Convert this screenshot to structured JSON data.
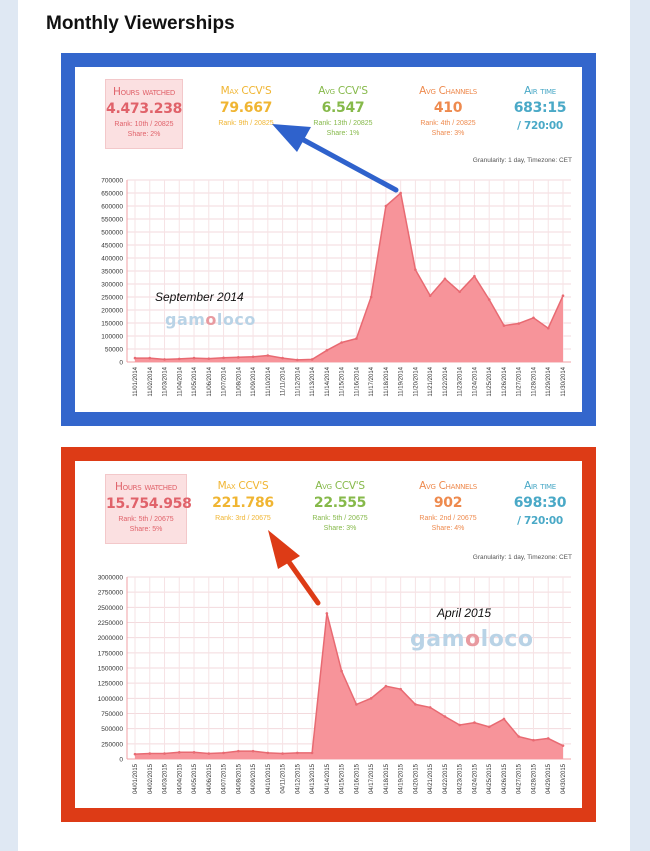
{
  "page_title": "Monthly Viewerships",
  "colors": {
    "frame1": "#3366cc",
    "frame2": "#dd3b16",
    "hours": "#e0626a",
    "max": "#f0b532",
    "avg": "#86b94a",
    "channels": "#ee8a4e",
    "air": "#4aa9c7",
    "area": "#f7949a",
    "line": "#e86a72"
  },
  "panels": [
    {
      "stats": {
        "hours": {
          "label": "Hours watched",
          "value": "4.473.238",
          "rank": "Rank: 10th / 20825",
          "share": "Share: 2%"
        },
        "max": {
          "label": "Max CCV'S",
          "value": "79.667",
          "rank": "Rank: 9th / 20825"
        },
        "avg": {
          "label": "Avg CCV'S",
          "value": "6.547",
          "rank": "Rank: 13th / 20825",
          "share": "Share: 1%"
        },
        "channels": {
          "label": "Avg Channels",
          "value": "410",
          "rank": "Rank: 4th / 20825",
          "share": "Share: 3%"
        },
        "air": {
          "label": "Air time",
          "value": "683:15",
          "total": "/ 720:00"
        }
      },
      "granularity": "Granularity: 1 day, Timezone: CET",
      "caption": "September 2014",
      "logo": {
        "pre": "gam",
        "o": "o",
        "post": "loco"
      }
    },
    {
      "stats": {
        "hours": {
          "label": "Hours watched",
          "value": "15.754.958",
          "rank": "Rank: 5th / 20675",
          "share": "Share: 5%"
        },
        "max": {
          "label": "Max CCV'S",
          "value": "221.786",
          "rank": "Rank: 3rd / 20675"
        },
        "avg": {
          "label": "Avg CCV'S",
          "value": "22.555",
          "rank": "Rank: 5th / 20675",
          "share": "Share: 3%"
        },
        "channels": {
          "label": "Avg Channels",
          "value": "902",
          "rank": "Rank: 2nd / 20675",
          "share": "Share: 4%"
        },
        "air": {
          "label": "Air time",
          "value": "698:30",
          "total": "/ 720:00"
        }
      },
      "granularity": "Granularity: 1 day, Timezone: CET",
      "caption": "April 2015",
      "logo": {
        "pre": "gam",
        "o": "o",
        "post": "loco"
      }
    }
  ],
  "chart_data": [
    {
      "type": "area",
      "x": [
        "11/01/2014",
        "11/02/2014",
        "11/03/2014",
        "11/04/2014",
        "11/05/2014",
        "11/06/2014",
        "11/07/2014",
        "11/08/2014",
        "11/09/2014",
        "11/10/2014",
        "11/11/2014",
        "11/12/2014",
        "11/13/2014",
        "11/14/2014",
        "11/15/2014",
        "11/16/2014",
        "11/17/2014",
        "11/18/2014",
        "11/19/2014",
        "11/20/2014",
        "11/21/2014",
        "11/22/2014",
        "11/23/2014",
        "11/24/2014",
        "11/25/2014",
        "11/26/2014",
        "11/27/2014",
        "11/28/2014",
        "11/29/2014",
        "11/30/2014"
      ],
      "values": [
        15000,
        15000,
        10000,
        12000,
        15000,
        13000,
        16000,
        18000,
        20000,
        25000,
        15000,
        8000,
        10000,
        45000,
        75000,
        90000,
        250000,
        600000,
        650000,
        355000,
        255000,
        320000,
        270000,
        330000,
        240000,
        140000,
        148000,
        170000,
        130000,
        255000
      ],
      "ylim": [
        0,
        700000
      ],
      "yticks": [
        0,
        50000,
        100000,
        150000,
        200000,
        250000,
        300000,
        350000,
        400000,
        450000,
        500000,
        550000,
        600000,
        650000,
        700000
      ],
      "grid": true
    },
    {
      "type": "area",
      "x": [
        "04/01/2015",
        "04/02/2015",
        "04/03/2015",
        "04/04/2015",
        "04/05/2015",
        "04/06/2015",
        "04/07/2015",
        "04/08/2015",
        "04/09/2015",
        "04/10/2015",
        "04/11/2015",
        "04/12/2015",
        "04/13/2015",
        "04/14/2015",
        "04/15/2015",
        "04/16/2015",
        "04/17/2015",
        "04/18/2015",
        "04/19/2015",
        "04/20/2015",
        "04/21/2015",
        "04/22/2015",
        "04/23/2015",
        "04/24/2015",
        "04/25/2015",
        "04/26/2015",
        "04/27/2015",
        "04/28/2015",
        "04/29/2015",
        "04/30/2015"
      ],
      "values": [
        80000,
        90000,
        90000,
        110000,
        110000,
        90000,
        100000,
        130000,
        130000,
        100000,
        90000,
        100000,
        100000,
        2400000,
        1450000,
        900000,
        1000000,
        1200000,
        1150000,
        900000,
        850000,
        700000,
        560000,
        600000,
        530000,
        660000,
        370000,
        310000,
        340000,
        220000
      ],
      "ylim": [
        0,
        3000000
      ],
      "yticks": [
        0,
        250000,
        500000,
        750000,
        1000000,
        1250000,
        1500000,
        1750000,
        2000000,
        2250000,
        2500000,
        2750000,
        3000000
      ],
      "grid": true
    }
  ]
}
